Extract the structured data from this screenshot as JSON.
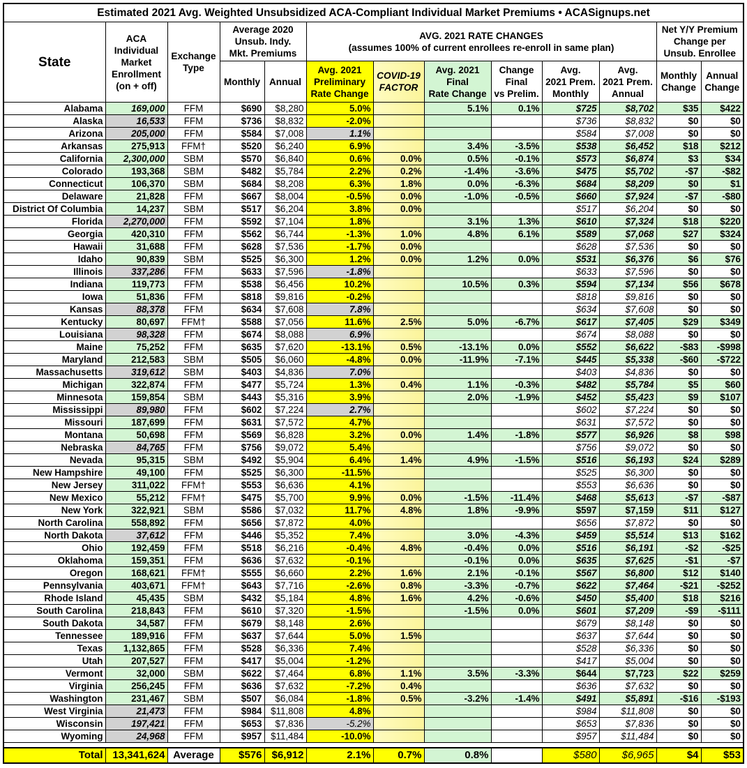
{
  "title": "Estimated 2021 Avg. Weighted Unsubsidized ACA-Compliant Individual Market Premiums • ACASignups.net",
  "colors": {
    "preliminary": "#ffff00",
    "covid": "#fbf49a",
    "final": "#d3f5d3",
    "estimated": "#d2d2d2"
  },
  "headers": {
    "state": "State",
    "enrollment": "ACA\nIndividual\nMarket\nEnrollment\n(on + off)",
    "exchange": "Exchange\nType",
    "avg2020": "Average 2020\nUnsub. Indy.\nMkt. Premiums",
    "rate_changes": "AVG. 2021 RATE CHANGES\n(assumes 100% of current enrollees re-enroll in same plan)",
    "net": "Net Y/Y Premium\nChange per\nUnsub. Enrollee",
    "monthly": "Monthly",
    "annual": "Annual",
    "prelim": "Avg. 2021\nPreliminary\nRate Change",
    "covid": "COVID-19\nFACTOR",
    "final": "Avg. 2021\nFinal\nRate Change",
    "chg": "Change\nFinal\nvs Prelim.",
    "m21": "Avg.\n2021 Prem.\nMonthly",
    "a21": "Avg.\n2021 Prem.\nAnnual",
    "netm": "Monthly\nChange",
    "neta": "Annual\nChange"
  },
  "row_flags_legend": {
    "eg": "estimated enrollment (gray)",
    "ei": "italic enrollment",
    "pg": "estimated preliminary rate (gray)",
    "f": "final rate available (green)"
  },
  "rows": [
    [
      "Alabama",
      "169,000",
      "FFM",
      "$690",
      "$8,280",
      "5.0%",
      "",
      "5.1%",
      "0.1%",
      "$725",
      "$8,702",
      "$35",
      "$422",
      "ei f"
    ],
    [
      "Alaska",
      "16,533",
      "FFM",
      "$736",
      "$8,832",
      "-2.0%",
      "",
      "",
      "",
      "$736",
      "$8,832",
      "$0",
      "$0",
      "eg"
    ],
    [
      "Arizona",
      "205,000",
      "FFM",
      "$584",
      "$7,008",
      "1.1%",
      "",
      "",
      "",
      "$584",
      "$7,008",
      "$0",
      "$0",
      "eg pg"
    ],
    [
      "Arkansas",
      "275,913",
      "FFM†",
      "$520",
      "$6,240",
      "6.9%",
      "",
      "3.4%",
      "-3.5%",
      "$538",
      "$6,452",
      "$18",
      "$212",
      "f"
    ],
    [
      "California",
      "2,300,000",
      "SBM",
      "$570",
      "$6,840",
      "0.6%",
      "0.0%",
      "0.5%",
      "-0.1%",
      "$573",
      "$6,874",
      "$3",
      "$34",
      "ei f"
    ],
    [
      "Colorado",
      "193,368",
      "SBM",
      "$482",
      "$5,784",
      "2.2%",
      "0.2%",
      "-1.4%",
      "-3.6%",
      "$475",
      "$5,702",
      "-$7",
      "-$82",
      "f"
    ],
    [
      "Connecticut",
      "106,370",
      "SBM",
      "$684",
      "$8,208",
      "6.3%",
      "1.8%",
      "0.0%",
      "-6.3%",
      "$684",
      "$8,209",
      "$0",
      "$1",
      "f"
    ],
    [
      "Delaware",
      "21,828",
      "FFM",
      "$667",
      "$8,004",
      "-0.5%",
      "0.0%",
      "-1.0%",
      "-0.5%",
      "$660",
      "$7,924",
      "-$7",
      "-$80",
      "f"
    ],
    [
      "District Of Columbia",
      "14,237",
      "SBM",
      "$517",
      "$6,204",
      "3.8%",
      "0.0%",
      "",
      "",
      "$517",
      "$6,204",
      "$0",
      "$0",
      ""
    ],
    [
      "Florida",
      "2,270,000",
      "FFM",
      "$592",
      "$7,104",
      "1.8%",
      "",
      "3.1%",
      "1.3%",
      "$610",
      "$7,324",
      "$18",
      "$220",
      "eg f"
    ],
    [
      "Georgia",
      "420,310",
      "FFM",
      "$562",
      "$6,744",
      "-1.3%",
      "1.0%",
      "4.8%",
      "6.1%",
      "$589",
      "$7,068",
      "$27",
      "$324",
      "f"
    ],
    [
      "Hawaii",
      "31,688",
      "FFM",
      "$628",
      "$7,536",
      "-1.7%",
      "0.0%",
      "",
      "",
      "$628",
      "$7,536",
      "$0",
      "$0",
      ""
    ],
    [
      "Idaho",
      "90,839",
      "SBM",
      "$525",
      "$6,300",
      "1.2%",
      "0.0%",
      "1.2%",
      "0.0%",
      "$531",
      "$6,376",
      "$6",
      "$76",
      "f"
    ],
    [
      "Illinois",
      "337,286",
      "FFM",
      "$633",
      "$7,596",
      "-1.8%",
      "",
      "",
      "",
      "$633",
      "$7,596",
      "$0",
      "$0",
      "eg pg"
    ],
    [
      "Indiana",
      "119,773",
      "FFM",
      "$538",
      "$6,456",
      "10.2%",
      "",
      "10.5%",
      "0.3%",
      "$594",
      "$7,134",
      "$56",
      "$678",
      "f"
    ],
    [
      "Iowa",
      "51,836",
      "FFM",
      "$818",
      "$9,816",
      "-0.2%",
      "",
      "",
      "",
      "$818",
      "$9,816",
      "$0",
      "$0",
      ""
    ],
    [
      "Kansas",
      "88,378",
      "FFM",
      "$634",
      "$7,608",
      "7.8%",
      "",
      "",
      "",
      "$634",
      "$7,608",
      "$0",
      "$0",
      "eg pg"
    ],
    [
      "Kentucky",
      "80,697",
      "FFM†",
      "$588",
      "$7,056",
      "11.6%",
      "2.5%",
      "5.0%",
      "-6.7%",
      "$617",
      "$7,405",
      "$29",
      "$349",
      "f"
    ],
    [
      "Louisiana",
      "98,328",
      "FFM",
      "$674",
      "$8,088",
      "6.9%",
      "",
      "",
      "",
      "$674",
      "$8,088",
      "$0",
      "$0",
      "eg pg"
    ],
    [
      "Maine",
      "75,252",
      "FFM",
      "$635",
      "$7,620",
      "-13.1%",
      "0.5%",
      "-13.1%",
      "0.0%",
      "$552",
      "$6,622",
      "-$83",
      "-$998",
      "f"
    ],
    [
      "Maryland",
      "212,583",
      "SBM",
      "$505",
      "$6,060",
      "-4.8%",
      "0.0%",
      "-11.9%",
      "-7.1%",
      "$445",
      "$5,338",
      "-$60",
      "-$722",
      "f"
    ],
    [
      "Massachusetts",
      "319,612",
      "SBM",
      "$403",
      "$4,836",
      "7.0%",
      "",
      "",
      "",
      "$403",
      "$4,836",
      "$0",
      "$0",
      "eg pg"
    ],
    [
      "Michigan",
      "322,874",
      "FFM",
      "$477",
      "$5,724",
      "1.3%",
      "0.4%",
      "1.1%",
      "-0.3%",
      "$482",
      "$5,784",
      "$5",
      "$60",
      "f"
    ],
    [
      "Minnesota",
      "159,854",
      "SBM",
      "$443",
      "$5,316",
      "3.9%",
      "",
      "2.0%",
      "-1.9%",
      "$452",
      "$5,423",
      "$9",
      "$107",
      "f"
    ],
    [
      "Mississippi",
      "89,980",
      "FFM",
      "$602",
      "$7,224",
      "2.7%",
      "",
      "",
      "",
      "$602",
      "$7,224",
      "$0",
      "$0",
      "eg pg"
    ],
    [
      "Missouri",
      "187,699",
      "FFM",
      "$631",
      "$7,572",
      "4.7%",
      "",
      "",
      "",
      "$631",
      "$7,572",
      "$0",
      "$0",
      ""
    ],
    [
      "Montana",
      "50,698",
      "FFM",
      "$569",
      "$6,828",
      "3.2%",
      "0.0%",
      "1.4%",
      "-1.8%",
      "$577",
      "$6,926",
      "$8",
      "$98",
      "f"
    ],
    [
      "Nebraska",
      "84,765",
      "FFM",
      "$756",
      "$9,072",
      "5.4%",
      "",
      "",
      "",
      "$756",
      "$9,072",
      "$0",
      "$0",
      "eg"
    ],
    [
      "Nevada",
      "95,315",
      "SBM",
      "$492",
      "$5,904",
      "6.4%",
      "1.4%",
      "4.9%",
      "-1.5%",
      "$516",
      "$6,193",
      "$24",
      "$289",
      "f"
    ],
    [
      "New Hampshire",
      "49,100",
      "FFM",
      "$525",
      "$6,300",
      "-11.5%",
      "",
      "",
      "",
      "$525",
      "$6,300",
      "$0",
      "$0",
      ""
    ],
    [
      "New Jersey",
      "311,022",
      "FFM†",
      "$553",
      "$6,636",
      "4.1%",
      "",
      "",
      "",
      "$553",
      "$6,636",
      "$0",
      "$0",
      ""
    ],
    [
      "New Mexico",
      "55,212",
      "FFM†",
      "$475",
      "$5,700",
      "9.9%",
      "0.0%",
      "-1.5%",
      "-11.4%",
      "$468",
      "$5,613",
      "-$7",
      "-$87",
      "f"
    ],
    [
      "New York",
      "322,921",
      "SBM",
      "$586",
      "$7,032",
      "11.7%",
      "4.8%",
      "1.8%",
      "-9.9%",
      "$597",
      "$7,159",
      "$11",
      "$127",
      "f"
    ],
    [
      "North Carolina",
      "558,892",
      "FFM",
      "$656",
      "$7,872",
      "4.0%",
      "",
      "",
      "",
      "$656",
      "$7,872",
      "$0",
      "$0",
      ""
    ],
    [
      "North Dakota",
      "37,612",
      "FFM",
      "$446",
      "$5,352",
      "7.4%",
      "",
      "3.0%",
      "-4.3%",
      "$459",
      "$5,514",
      "$13",
      "$162",
      "eg f"
    ],
    [
      "Ohio",
      "192,459",
      "FFM",
      "$518",
      "$6,216",
      "-0.4%",
      "4.8%",
      "-0.4%",
      "0.0%",
      "$516",
      "$6,191",
      "-$2",
      "-$25",
      "f"
    ],
    [
      "Oklahoma",
      "159,351",
      "FFM",
      "$636",
      "$7,632",
      "-0.1%",
      "",
      "-0.1%",
      "0.0%",
      "$635",
      "$7,625",
      "-$1",
      "-$7",
      "f"
    ],
    [
      "Oregon",
      "168,621",
      "FFM†",
      "$555",
      "$6,660",
      "2.2%",
      "1.6%",
      "2.1%",
      "-0.1%",
      "$567",
      "$6,800",
      "$12",
      "$140",
      "f"
    ],
    [
      "Pennsylvania",
      "403,671",
      "FFM†",
      "$643",
      "$7,716",
      "-2.6%",
      "0.8%",
      "-3.3%",
      "-0.7%",
      "$622",
      "$7,464",
      "-$21",
      "-$252",
      "f"
    ],
    [
      "Rhode Island",
      "45,435",
      "SBM",
      "$432",
      "$5,184",
      "4.8%",
      "1.6%",
      "4.2%",
      "-0.6%",
      "$450",
      "$5,400",
      "$18",
      "$216",
      "f"
    ],
    [
      "South Carolina",
      "218,843",
      "FFM",
      "$610",
      "$7,320",
      "-1.5%",
      "",
      "-1.5%",
      "0.0%",
      "$601",
      "$7,209",
      "-$9",
      "-$111",
      "f"
    ],
    [
      "South Dakota",
      "34,587",
      "FFM",
      "$679",
      "$8,148",
      "2.6%",
      "",
      "",
      "",
      "$679",
      "$8,148",
      "$0",
      "$0",
      ""
    ],
    [
      "Tennessee",
      "189,916",
      "FFM",
      "$637",
      "$7,644",
      "5.0%",
      "1.5%",
      "",
      "",
      "$637",
      "$7,644",
      "$0",
      "$0",
      ""
    ],
    [
      "Texas",
      "1,132,865",
      "FFM",
      "$528",
      "$6,336",
      "7.4%",
      "",
      "",
      "",
      "$528",
      "$6,336",
      "$0",
      "$0",
      ""
    ],
    [
      "Utah",
      "207,527",
      "FFM",
      "$417",
      "$5,004",
      "-1.2%",
      "",
      "",
      "",
      "$417",
      "$5,004",
      "$0",
      "$0",
      ""
    ],
    [
      "Vermont",
      "32,000",
      "SBM",
      "$622",
      "$7,464",
      "6.8%",
      "1.1%",
      "3.5%",
      "-3.3%",
      "$644",
      "$7,723",
      "$22",
      "$259",
      "f"
    ],
    [
      "Virginia",
      "256,245",
      "FFM",
      "$636",
      "$7,632",
      "-7.2%",
      "0.4%",
      "",
      "",
      "$636",
      "$7,632",
      "$0",
      "$0",
      ""
    ],
    [
      "Washington",
      "231,467",
      "SBM",
      "$507",
      "$6,084",
      "-1.8%",
      "0.5%",
      "-3.2%",
      "-1.4%",
      "$491",
      "$5,891",
      "-$16",
      "-$193",
      "f"
    ],
    [
      "West Virginia",
      "21,473",
      "FFM",
      "$984",
      "$11,808",
      "4.8%",
      "",
      "",
      "",
      "$984",
      "$11,808",
      "$0",
      "$0",
      "eg"
    ],
    [
      "Wisconsin",
      "197,421",
      "FFM",
      "$653",
      "$7,836",
      "-5.2%",
      "",
      "",
      "",
      "$653",
      "$7,836",
      "$0",
      "$0",
      "eg pg"
    ],
    [
      "Wyoming",
      "24,968",
      "FFM",
      "$957",
      "$11,484",
      "-10.0%",
      "",
      "",
      "",
      "$957",
      "$11,484",
      "$0",
      "$0",
      "eg"
    ]
  ],
  "total": [
    "Total",
    "13,341,624",
    "Average",
    "$576",
    "$6,912",
    "2.1%",
    "0.7%",
    "0.8%",
    "",
    "$580",
    "$6,965",
    "$4",
    "$53"
  ]
}
